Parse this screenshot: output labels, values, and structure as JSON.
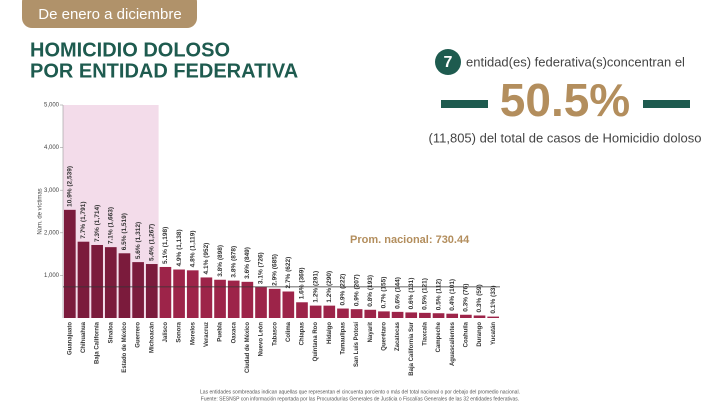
{
  "header": {
    "period": "De enero a diciembre",
    "title_line1": "HOMICIDIO DOLOSO",
    "title_line2": "POR ENTIDAD FEDERATIVA"
  },
  "summary": {
    "count": 7,
    "count_text": "entidad(es) federativa(s)concentran el",
    "percent": {
      "value": 50.5,
      "label": "50.5%"
    },
    "detail": "(11,805) del total de casos de Homicidio doloso"
  },
  "chart_data": {
    "type": "bar",
    "y_label": "Núm. de víctimas",
    "categories": [
      "Guanajuato",
      "Chihuahua",
      "Baja California",
      "Sinaloa",
      "Estado de México",
      "Guerrero",
      "Michoacán",
      "Jalisco",
      "Sonora",
      "Morelos",
      "Veracruz",
      "Puebla",
      "Oaxaca",
      "Ciudad de México",
      "Nuevo León",
      "Tabasco",
      "Colima",
      "Chiapas",
      "Quintana Roo",
      "Hidalgo",
      "Tamaulipas",
      "San Luis Potosí",
      "Nayarit",
      "Querétaro",
      "Zacatecas",
      "Baja California Sur",
      "Tlaxcala",
      "Campeche",
      "Aguascalientes",
      "Coahuila",
      "Durango",
      "Yucatán"
    ],
    "values": [
      2539,
      1791,
      1714,
      1663,
      1519,
      1312,
      1267,
      1198,
      1138,
      1119,
      952,
      898,
      878,
      849,
      726,
      685,
      622,
      369,
      291,
      290,
      222,
      207,
      193,
      155,
      144,
      131,
      121,
      112,
      101,
      76,
      59,
      33
    ],
    "value_labels": [
      "10.9% (2,539)",
      "7.7% (1,791)",
      "7.3% (1,714)",
      "7.1% (1,663)",
      "6.5% (1,519)",
      "5.6% (1,312)",
      "5.4% (1,267)",
      "5.1% (1,198)",
      "4.9% (1,138)",
      "4.8% (1,119)",
      "4.1% (952)",
      "3.8% (898)",
      "3.8% (878)",
      "3.6% (849)",
      "3.1% (726)",
      "2.9% (685)",
      "2.7% (622)",
      "1.6% (369)",
      "1.2% (291)",
      "1.2% (290)",
      "0.9% (222)",
      "0.9% (207)",
      "0.8% (193)",
      "0.7% (155)",
      "0.6% (144)",
      "0.6% (131)",
      "0.5% (121)",
      "0.5% (112)",
      "0.4% (101)",
      "0.3% (76)",
      "0.3% (59)",
      "0.1% (33)"
    ],
    "color": "#9d2449",
    "highlight_color": "#7b1b3c",
    "shade_color": "#f3dcea",
    "ylim": [
      0,
      5000
    ],
    "yticks": [
      {
        "value": 1000,
        "label": "1,000"
      },
      {
        "value": 2000,
        "label": "2,000"
      },
      {
        "value": 3000,
        "label": "3,000"
      },
      {
        "value": 4000,
        "label": "4,000"
      },
      {
        "value": 5000,
        "label": "5,000"
      }
    ],
    "average": {
      "value": 730.44,
      "label": "Prom. nacional: 730.44"
    }
  },
  "footnote": [
    "Las entidades sombreadas indican aquellas que representan el cincuenta porciento o más del total nacional o por debajo del promedio nacional.",
    "Fuente: SESNSP con información reportada por las Procuradurías Generales de Justicia o Fiscalías Generales de las 32 entidades federativas."
  ]
}
